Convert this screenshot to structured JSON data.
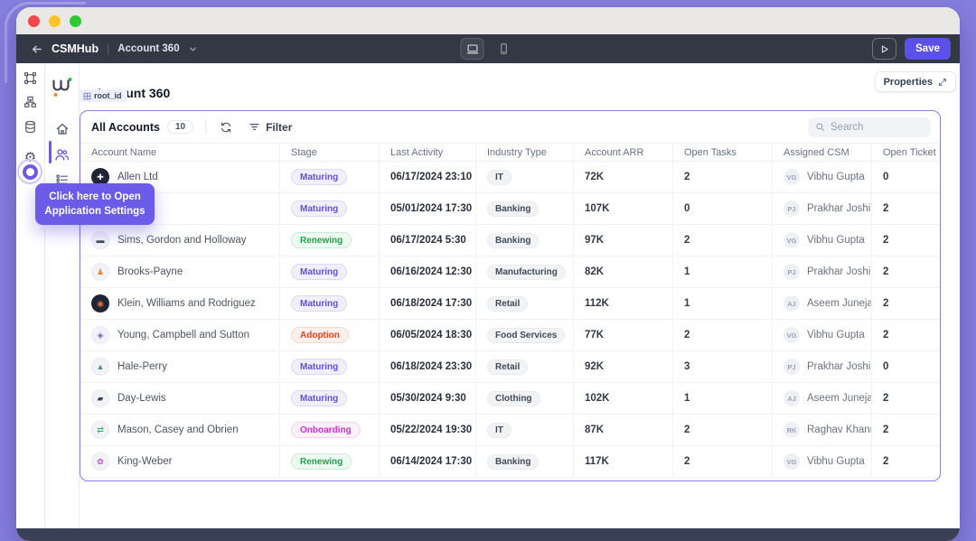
{
  "colors": {
    "desktop_background": "#8680e0",
    "toolbar_background": "#333944",
    "accent": "#6a5ce9",
    "save_button": "#5b51e8",
    "card_border": "#8b7ce6",
    "traffic_lights": [
      "#f0484d",
      "#f9c32c",
      "#2dc937"
    ],
    "stage_maturing": "#6050dc",
    "stage_renewing": "#1fa24e",
    "stage_adoption": "#df4426",
    "stage_onboarding": "#cf2fd3"
  },
  "toolbar": {
    "app_name": "CSMHub",
    "page_label": "Account 360",
    "save_label": "Save"
  },
  "icons": {
    "outer_sidebar": [
      "artboard-icon",
      "tree-icon",
      "database-icon",
      "settings-gear-icon"
    ],
    "app_rail": [
      "app-logo",
      "home-icon",
      "accounts-users-icon",
      "checklist-icon"
    ],
    "toolbar": [
      "back-arrow-icon",
      "chevron-down-icon",
      "desktop-view-icon",
      "mobile-view-icon",
      "play-icon"
    ],
    "card": [
      "refresh-icon",
      "filter-icon",
      "search-icon"
    ],
    "properties": "expand-icon",
    "root_tag": "grid-icon"
  },
  "page": {
    "title": "Account 360",
    "tag": "root_id",
    "properties_label": "Properties"
  },
  "tooltip": {
    "line1": "Click here to Open",
    "line2": "Application Settings"
  },
  "table": {
    "title": "All Accounts",
    "count": "10",
    "filter_label": "Filter",
    "search_placeholder": "Search",
    "columns": [
      "Account Name",
      "Stage",
      "Last Activity",
      "Industry Type",
      "Account ARR",
      "Open Tasks",
      "Assigned CSM",
      "Open Ticket"
    ],
    "rows": [
      {
        "name": "Allen Ltd",
        "avatar": {
          "variant": "dark",
          "glyph": "✚",
          "color": "#ffffff"
        },
        "stage": "Maturing",
        "stage_variant": "maturing",
        "last_activity": "06/17/2024 23:10",
        "industry": "IT",
        "arr": "72K",
        "open_tasks": "2",
        "csm_initials": "VG",
        "csm": "Vibhu Gupta",
        "open_ticket": "0"
      },
      {
        "name": "",
        "avatar": {
          "variant": "light",
          "glyph": "",
          "color": "#9aa3af"
        },
        "stage": "Maturing",
        "stage_variant": "maturing",
        "last_activity": "05/01/2024 17:30",
        "industry": "Banking",
        "arr": "107K",
        "open_tasks": "0",
        "csm_initials": "PJ",
        "csm": "Prakhar Joshi",
        "open_ticket": "2"
      },
      {
        "name": "Sims, Gordon and Holloway",
        "avatar": {
          "variant": "light",
          "glyph": "▬",
          "color": "#414a58"
        },
        "stage": "Renewing",
        "stage_variant": "renewing",
        "last_activity": "06/17/2024 5:30",
        "industry": "Banking",
        "arr": "97K",
        "open_tasks": "2",
        "csm_initials": "VG",
        "csm": "Vibhu Gupta",
        "open_ticket": "2"
      },
      {
        "name": "Brooks-Payne",
        "avatar": {
          "variant": "light",
          "glyph": "♟",
          "color": "#e08a3c"
        },
        "stage": "Maturing",
        "stage_variant": "maturing",
        "last_activity": "06/16/2024 12:30",
        "industry": "Manufacturing",
        "arr": "82K",
        "open_tasks": "1",
        "csm_initials": "PJ",
        "csm": "Prakhar Joshi",
        "open_ticket": "2"
      },
      {
        "name": "Klein, Williams and Rodriguez",
        "avatar": {
          "variant": "dark",
          "glyph": "◉",
          "color": "#e2703a"
        },
        "stage": "Maturing",
        "stage_variant": "maturing",
        "last_activity": "06/18/2024 17:30",
        "industry": "Retail",
        "arr": "112K",
        "open_tasks": "1",
        "csm_initials": "AJ",
        "csm": "Aseem Juneja",
        "open_ticket": "2"
      },
      {
        "name": "Young, Campbell and Sutton",
        "avatar": {
          "variant": "light",
          "glyph": "◈",
          "color": "#7b5cd6"
        },
        "stage": "Adoption",
        "stage_variant": "adoption",
        "last_activity": "06/05/2024 18:30",
        "industry": "Food Services",
        "arr": "77K",
        "open_tasks": "2",
        "csm_initials": "VG",
        "csm": "Vibhu Gupta",
        "open_ticket": "2"
      },
      {
        "name": "Hale-Perry",
        "avatar": {
          "variant": "light",
          "glyph": "▲",
          "color": "#48918c"
        },
        "stage": "Maturing",
        "stage_variant": "maturing",
        "last_activity": "06/18/2024 23:30",
        "industry": "Retail",
        "arr": "92K",
        "open_tasks": "3",
        "csm_initials": "PJ",
        "csm": "Prakhar Joshi",
        "open_ticket": "0"
      },
      {
        "name": "Day-Lewis",
        "avatar": {
          "variant": "light",
          "glyph": "▰",
          "color": "#3a4150"
        },
        "stage": "Maturing",
        "stage_variant": "maturing",
        "last_activity": "05/30/2024 9:30",
        "industry": "Clothing",
        "arr": "102K",
        "open_tasks": "1",
        "csm_initials": "AJ",
        "csm": "Aseem Juneja",
        "open_ticket": "2"
      },
      {
        "name": "Mason, Casey and Obrien",
        "avatar": {
          "variant": "light",
          "glyph": "⇄",
          "color": "#2fae64"
        },
        "stage": "Onboarding",
        "stage_variant": "onboarding",
        "last_activity": "05/22/2024 19:30",
        "industry": "IT",
        "arr": "87K",
        "open_tasks": "2",
        "csm_initials": "RK",
        "csm": "Raghav Khanna",
        "open_ticket": "2"
      },
      {
        "name": "King-Weber",
        "avatar": {
          "variant": "light",
          "glyph": "✿",
          "color": "#b455c8"
        },
        "stage": "Renewing",
        "stage_variant": "renewing",
        "last_activity": "06/14/2024 17:30",
        "industry": "Banking",
        "arr": "117K",
        "open_tasks": "2",
        "csm_initials": "VG",
        "csm": "Vibhu Gupta",
        "open_ticket": "2"
      }
    ]
  }
}
